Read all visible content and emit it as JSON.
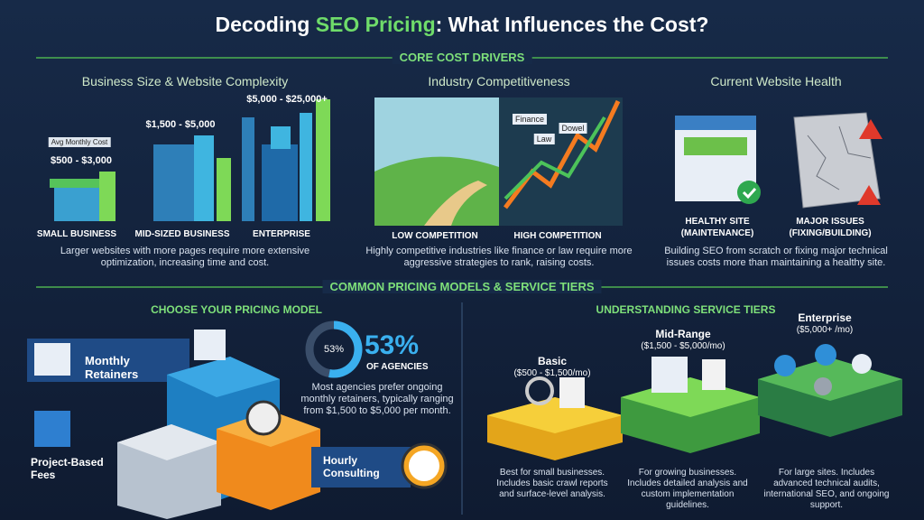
{
  "header": {
    "title_prefix": "Decoding ",
    "title_highlight": "SEO Pricing",
    "title_suffix": ": What Influences the Cost?"
  },
  "core_section": "CORE COST DRIVERS",
  "drivers": [
    {
      "title": "Business Size & Website Complexity",
      "tag": "Avg Monthly Cost",
      "tiers": [
        {
          "label": "SMALL BUSINESS",
          "price": "$500 - $3,000"
        },
        {
          "label": "MID-SIZED BUSINESS",
          "price": "$1,500 - $5,000"
        },
        {
          "label": "ENTERPRISE",
          "price": "$5,000 - $25,000+"
        }
      ],
      "caption": "Larger websites with more pages require more extensive optimization, increasing time and cost."
    },
    {
      "title": "Industry Competitiveness",
      "bubbles": [
        "Finance",
        "Law",
        "Dowel"
      ],
      "panels": [
        [
          "LOW COMPETITION"
        ],
        [
          "HIGH COMPETITION"
        ]
      ],
      "caption": "Highly competitive industries like finance or law require more aggressive strategies to rank, raising costs."
    },
    {
      "title": "Current Website Health",
      "panels": [
        [
          "HEALTHY SITE",
          "(MAINTENANCE)"
        ],
        [
          "MAJOR ISSUES",
          "(FIXING/BUILDING)"
        ]
      ],
      "caption": "Building SEO from scratch or fixing major technical issues costs more than maintaining a healthy site."
    }
  ],
  "models_section": "COMMON PRICING MODELS & SERVICE TIERS",
  "models": {
    "title": "CHOOSE YOUR PRICING MODEL",
    "items": [
      "Monthly Retainers",
      "Project-Based Fees",
      "Hourly Consulting"
    ],
    "share": {
      "value": 53,
      "label": "53%"
    },
    "share_caption": "OF AGENCIES",
    "note": "Most agencies prefer ongoing monthly retainers, typically ranging from $1,500 to $5,000 per month."
  },
  "tiers": {
    "title": "UNDERSTANDING SERVICE TIERS",
    "items": [
      {
        "name": "Basic",
        "price": "($500 - $1,500/mo)",
        "desc": "Best for small businesses. Includes basic crawl reports and surface-level analysis."
      },
      {
        "name": "Mid-Range",
        "price": "($1,500 - $5,000/mo)",
        "desc": "For growing businesses. Includes detailed analysis and custom implementation guidelines."
      },
      {
        "name": "Enterprise",
        "price": "($5,000+ /mo)",
        "desc": "For large sites. Includes advanced technical audits, international SEO, and ongoing support."
      }
    ]
  }
}
